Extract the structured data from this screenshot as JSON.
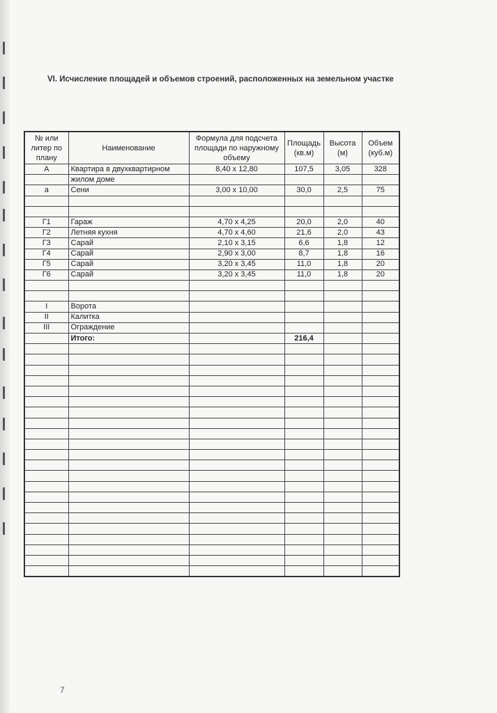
{
  "title": "VI.  Исчисление площадей и объемов строений, расположенных на земельном участке",
  "headers": [
    "№ или литер по плану",
    "Наименование",
    "Формула для подсчета площади  по наружному объему",
    "Площадь (кв.м)",
    "Высота (м)",
    "Объем (куб.м)"
  ],
  "rows": [
    [
      "А",
      "Квартира в двухквартирном",
      "8,40 x 12,80",
      "107,5",
      "3,05",
      "328"
    ],
    [
      "",
      "жилом доме",
      "",
      "",
      "",
      ""
    ],
    [
      "а",
      "Сени",
      "3,00 x 10,00",
      "30,0",
      "2,5",
      "75"
    ],
    [
      "",
      "",
      "",
      "",
      "",
      ""
    ],
    [
      "",
      "",
      "",
      "",
      "",
      ""
    ],
    [
      "Г1",
      "Гараж",
      "4,70 x 4,25",
      "20,0",
      "2,0",
      "40"
    ],
    [
      "Г2",
      "Летняя кухня",
      "4,70 x 4,60",
      "21,6",
      "2,0",
      "43"
    ],
    [
      "Г3",
      "Сарай",
      "2,10 x 3,15",
      "6,6",
      "1,8",
      "12"
    ],
    [
      "Г4",
      "Сарай",
      "2,90 x 3,00",
      "8,7",
      "1,8",
      "16"
    ],
    [
      "Г5",
      "Сарай",
      "3,20 x 3,45",
      "11,0",
      "1,8",
      "20"
    ],
    [
      "Г6",
      "Сарай",
      "3,20 x 3,45",
      "11,0",
      "1,8",
      "20"
    ],
    [
      "",
      "",
      "",
      "",
      "",
      ""
    ],
    [
      "",
      "",
      "",
      "",
      "",
      ""
    ],
    [
      "I",
      "Ворота",
      "",
      "",
      "",
      ""
    ],
    [
      "II",
      "Калитка",
      "",
      "",
      "",
      ""
    ],
    [
      "III",
      "Ограждение",
      "",
      "",
      "",
      ""
    ]
  ],
  "total": {
    "label": "Итого:",
    "area": "216,4"
  },
  "page_mark": "7"
}
